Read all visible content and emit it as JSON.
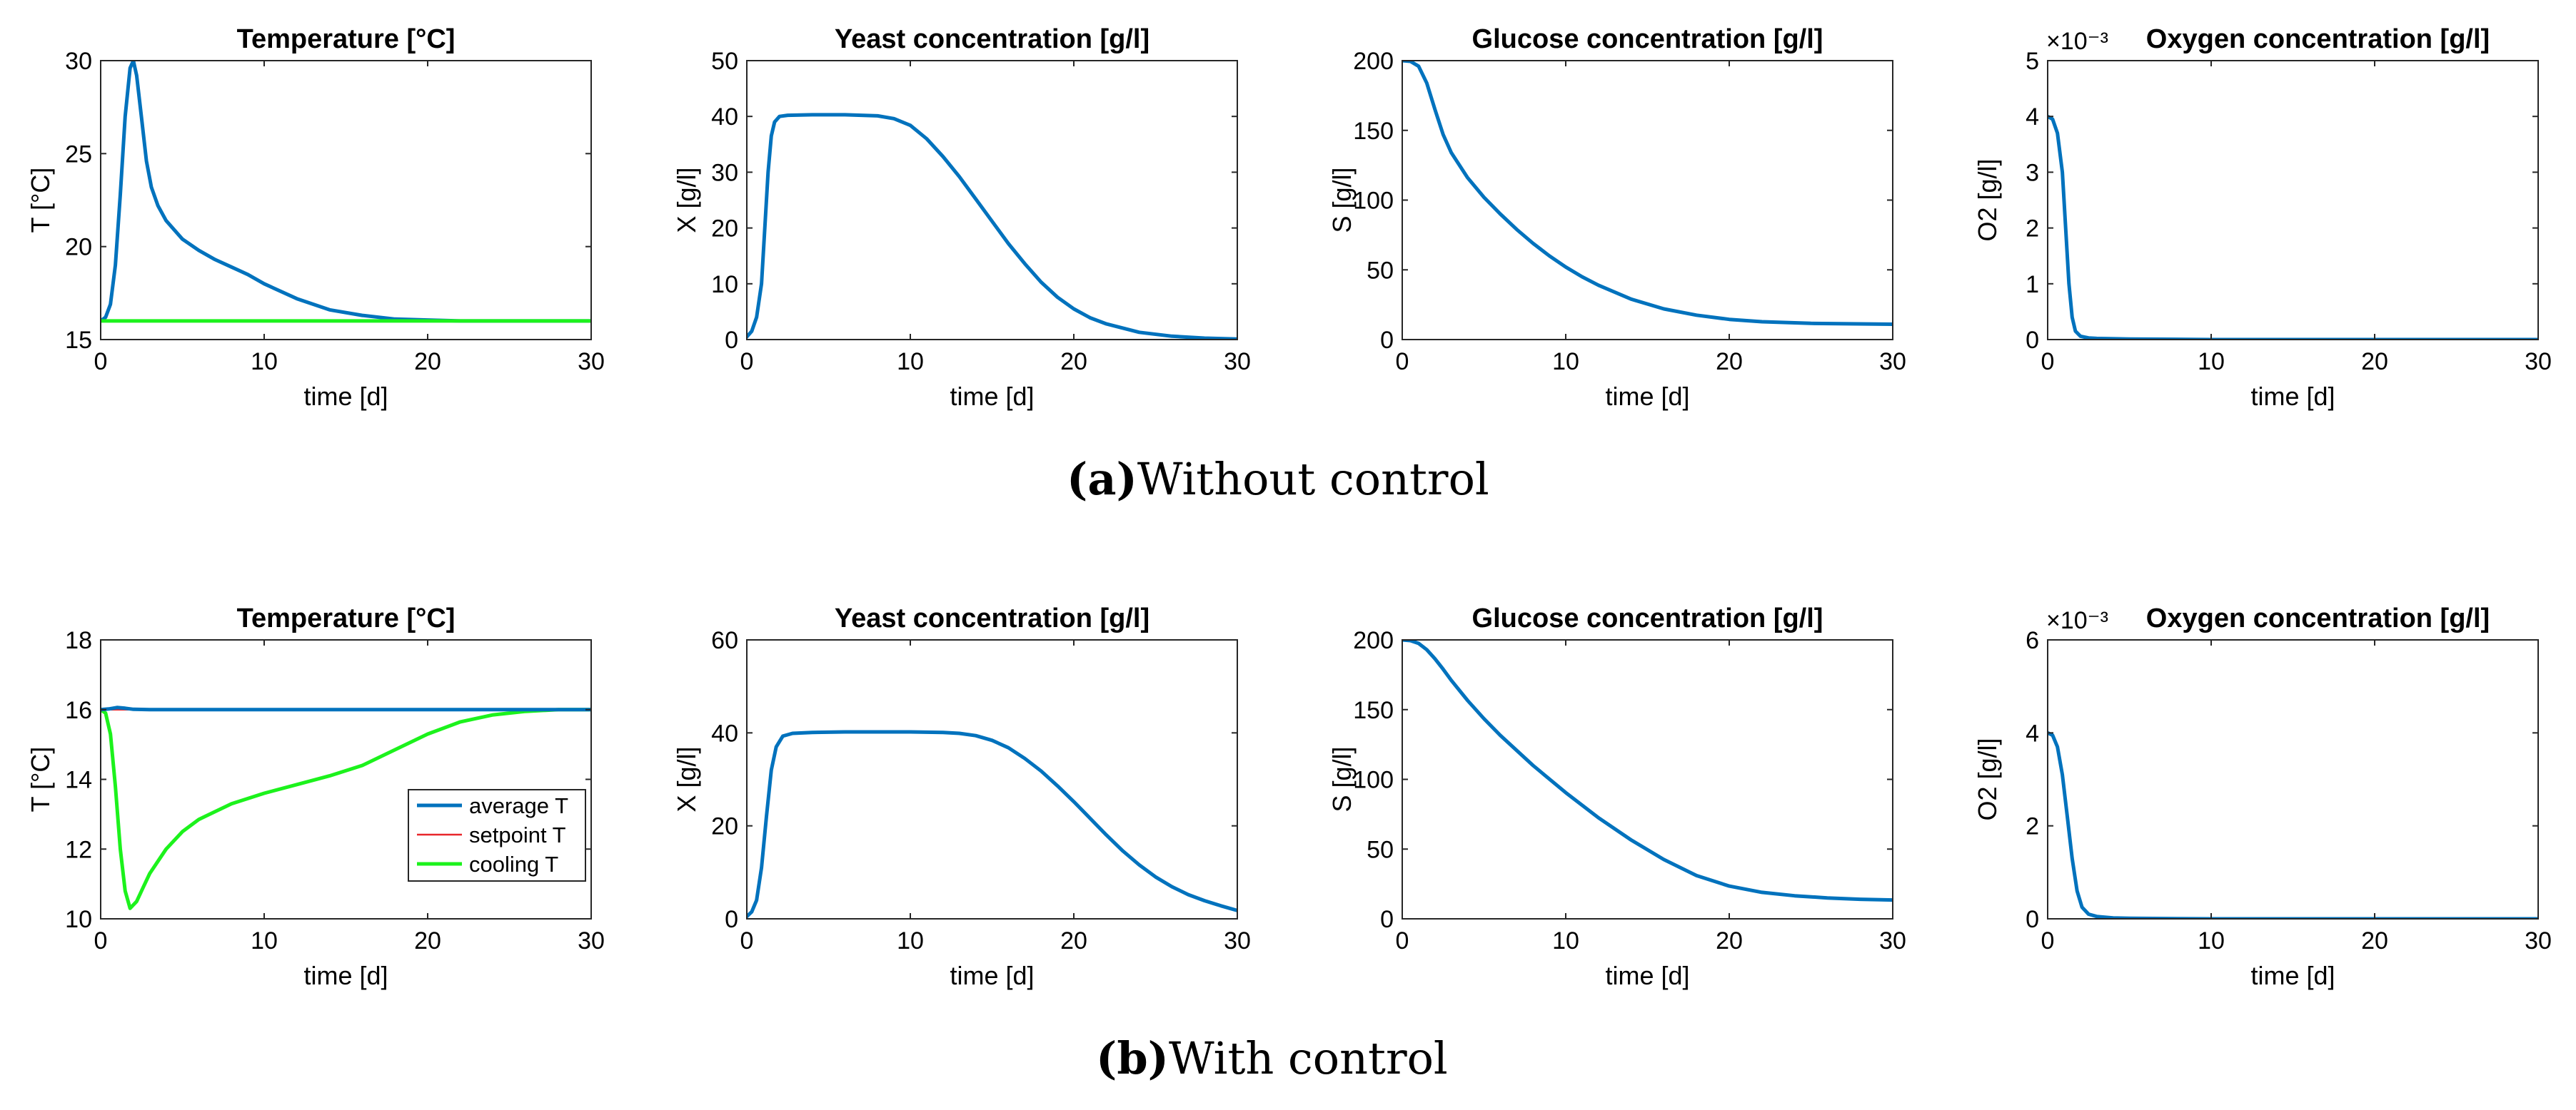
{
  "captions": [
    {
      "letter": "(a)",
      "text": "Without control"
    },
    {
      "letter": "(b)",
      "text": "With control"
    }
  ],
  "colors": {
    "blue": "#0072BD",
    "red": "#E8262B",
    "green": "#1CF21C"
  },
  "chart_data": [
    {
      "type": "line",
      "title": "Temperature [°C]",
      "xlabel": "time [d]",
      "ylabel": "T [°C]",
      "xlim": [
        0,
        30
      ],
      "ylim": [
        15,
        30
      ],
      "xticks": [
        0,
        10,
        20,
        30
      ],
      "yticks": [
        15,
        20,
        25,
        30
      ],
      "series": [
        {
          "name": "average T",
          "color": "#0072BD",
          "width": 5,
          "x": [
            0,
            0.3,
            0.6,
            0.9,
            1.2,
            1.5,
            1.8,
            2.0,
            2.2,
            2.5,
            2.8,
            3.1,
            3.5,
            4,
            5,
            6,
            7,
            8,
            9,
            10,
            12,
            14,
            16,
            18,
            20,
            22,
            25,
            30
          ],
          "y": [
            16,
            16.2,
            16.9,
            19.0,
            22.8,
            27.0,
            29.6,
            30.0,
            29.2,
            26.9,
            24.6,
            23.2,
            22.2,
            21.4,
            20.4,
            19.8,
            19.3,
            18.9,
            18.5,
            18.0,
            17.2,
            16.6,
            16.3,
            16.1,
            16.05,
            16.0,
            16.0,
            16.0
          ]
        },
        {
          "name": "cooling T",
          "color": "#1CF21C",
          "width": 5,
          "x": [
            0,
            30
          ],
          "y": [
            16,
            16
          ]
        }
      ]
    },
    {
      "type": "line",
      "title": "Yeast concentration [g/l]",
      "xlabel": "time [d]",
      "ylabel": "X [g/l]",
      "xlim": [
        0,
        30
      ],
      "ylim": [
        0,
        50
      ],
      "xticks": [
        0,
        10,
        20,
        30
      ],
      "yticks": [
        0,
        10,
        20,
        30,
        40,
        50
      ],
      "series": [
        {
          "name": "X",
          "color": "#0072BD",
          "width": 5,
          "x": [
            0,
            0.3,
            0.6,
            0.9,
            1.1,
            1.3,
            1.5,
            1.7,
            2.0,
            2.5,
            4,
            6,
            8,
            9,
            10,
            11,
            12,
            13,
            14,
            15,
            16,
            17,
            18,
            19,
            20,
            21,
            22,
            24,
            26,
            28,
            30
          ],
          "y": [
            0.5,
            1.5,
            4,
            10,
            20,
            30,
            36.5,
            39,
            40,
            40.2,
            40.3,
            40.3,
            40.1,
            39.6,
            38.4,
            36.0,
            32.8,
            29.2,
            25.2,
            21.2,
            17.2,
            13.6,
            10.3,
            7.6,
            5.5,
            3.9,
            2.8,
            1.3,
            0.6,
            0.25,
            0.1
          ]
        }
      ]
    },
    {
      "type": "line",
      "title": "Glucose concentration [g/l]",
      "xlabel": "time [d]",
      "ylabel": "S [g/l]",
      "xlim": [
        0,
        30
      ],
      "ylim": [
        0,
        200
      ],
      "xticks": [
        0,
        10,
        20,
        30
      ],
      "yticks": [
        0,
        50,
        100,
        150,
        200
      ],
      "series": [
        {
          "name": "S",
          "color": "#0072BD",
          "width": 5,
          "x": [
            0,
            0.5,
            1.0,
            1.5,
            2.0,
            2.5,
            3,
            4,
            5,
            6,
            7,
            8,
            9,
            10,
            11,
            12,
            14,
            16,
            18,
            20,
            22,
            25,
            30
          ],
          "y": [
            200,
            199.5,
            196,
            184,
            165,
            147,
            134,
            116,
            102,
            90,
            79,
            69,
            60,
            52,
            45,
            39,
            29,
            22,
            17.5,
            14.5,
            12.8,
            11.6,
            11
          ]
        }
      ]
    },
    {
      "type": "line",
      "title": "Oxygen concentration [g/l]",
      "exponent": "×10⁻³",
      "xlabel": "time [d]",
      "ylabel": "O2 [g/l]",
      "xlim": [
        0,
        30
      ],
      "ylim": [
        0,
        5
      ],
      "xticks": [
        0,
        10,
        20,
        30
      ],
      "yticks": [
        0,
        1,
        2,
        3,
        4,
        5
      ],
      "series": [
        {
          "name": "O2",
          "color": "#0072BD",
          "width": 5,
          "x": [
            0,
            0.3,
            0.6,
            0.9,
            1.1,
            1.3,
            1.5,
            1.7,
            2.0,
            2.5,
            3,
            5,
            10,
            20,
            30
          ],
          "y": [
            4.0,
            3.95,
            3.7,
            3.0,
            2.0,
            1.0,
            0.4,
            0.15,
            0.06,
            0.03,
            0.02,
            0.01,
            0.0,
            0.0,
            0.0
          ]
        }
      ]
    },
    {
      "type": "line",
      "title": "Temperature [°C]",
      "xlabel": "time [d]",
      "ylabel": "T [°C]",
      "xlim": [
        0,
        30
      ],
      "ylim": [
        10,
        18
      ],
      "xticks": [
        0,
        10,
        20,
        30
      ],
      "yticks": [
        10,
        12,
        14,
        16,
        18
      ],
      "legend": {
        "position": "lower-right",
        "entries": [
          "average T",
          "setpoint T",
          "cooling T"
        ]
      },
      "series": [
        {
          "name": "cooling T",
          "color": "#1CF21C",
          "width": 5,
          "x": [
            0,
            0.3,
            0.6,
            0.9,
            1.2,
            1.5,
            1.8,
            2.2,
            2.6,
            3,
            4,
            5,
            6,
            8,
            10,
            12,
            14,
            16,
            18,
            20,
            22,
            24,
            26,
            28,
            30
          ],
          "y": [
            16,
            15.9,
            15.3,
            13.8,
            12.0,
            10.8,
            10.3,
            10.5,
            10.9,
            11.3,
            12.0,
            12.5,
            12.85,
            13.3,
            13.6,
            13.85,
            14.1,
            14.4,
            14.85,
            15.3,
            15.65,
            15.85,
            15.95,
            16.0,
            16.0
          ]
        },
        {
          "name": "setpoint T",
          "color": "#E8262B",
          "width": 2.5,
          "x": [
            0,
            30
          ],
          "y": [
            16,
            16
          ]
        },
        {
          "name": "average T",
          "color": "#0072BD",
          "width": 5,
          "x": [
            0,
            0.5,
            1.0,
            1.5,
            2.0,
            3,
            5,
            10,
            20,
            30
          ],
          "y": [
            16,
            16.02,
            16.06,
            16.04,
            16.01,
            16.0,
            16.0,
            16.0,
            16.0,
            16.0
          ]
        }
      ]
    },
    {
      "type": "line",
      "title": "Yeast concentration [g/l]",
      "xlabel": "time [d]",
      "ylabel": "X [g/l]",
      "xlim": [
        0,
        30
      ],
      "ylim": [
        0,
        60
      ],
      "xticks": [
        0,
        10,
        20,
        30
      ],
      "yticks": [
        0,
        20,
        40,
        60
      ],
      "series": [
        {
          "name": "X",
          "color": "#0072BD",
          "width": 5,
          "x": [
            0,
            0.3,
            0.6,
            0.9,
            1.2,
            1.5,
            1.8,
            2.2,
            2.8,
            4,
            6,
            8,
            10,
            12,
            13,
            14,
            15,
            16,
            17,
            18,
            19,
            20,
            21,
            22,
            23,
            24,
            25,
            26,
            27,
            28,
            29,
            30
          ],
          "y": [
            0.5,
            1.5,
            4,
            11,
            22,
            32,
            37,
            39.3,
            39.9,
            40.1,
            40.2,
            40.2,
            40.2,
            40.1,
            39.9,
            39.4,
            38.4,
            36.8,
            34.5,
            31.8,
            28.6,
            25.2,
            21.6,
            18.0,
            14.6,
            11.6,
            9.0,
            6.9,
            5.2,
            3.9,
            2.8,
            1.8
          ]
        }
      ]
    },
    {
      "type": "line",
      "title": "Glucose concentration [g/l]",
      "xlabel": "time [d]",
      "ylabel": "S [g/l]",
      "xlim": [
        0,
        30
      ],
      "ylim": [
        0,
        200
      ],
      "xticks": [
        0,
        10,
        20,
        30
      ],
      "yticks": [
        0,
        50,
        100,
        150,
        200
      ],
      "series": [
        {
          "name": "S",
          "color": "#0072BD",
          "width": 5,
          "x": [
            0,
            0.5,
            1.0,
            1.5,
            2.0,
            2.5,
            3,
            4,
            5,
            6,
            8,
            10,
            12,
            14,
            16,
            18,
            20,
            22,
            24,
            26,
            28,
            30
          ],
          "y": [
            200,
            199.5,
            197.5,
            193,
            186.5,
            179,
            171,
            156.5,
            143.5,
            131.5,
            110,
            90.5,
            72.5,
            56.5,
            42.5,
            31,
            23.5,
            19,
            16.5,
            15,
            14,
            13.5
          ]
        }
      ]
    },
    {
      "type": "line",
      "title": "Oxygen concentration [g/l]",
      "exponent": "×10⁻³",
      "xlabel": "time [d]",
      "ylabel": "O2 [g/l]",
      "xlim": [
        0,
        30
      ],
      "ylim": [
        0,
        6
      ],
      "xticks": [
        0,
        10,
        20,
        30
      ],
      "yticks": [
        0,
        2,
        4,
        6
      ],
      "series": [
        {
          "name": "O2",
          "color": "#0072BD",
          "width": 5,
          "x": [
            0,
            0.3,
            0.6,
            0.9,
            1.2,
            1.5,
            1.8,
            2.1,
            2.5,
            3,
            4,
            5,
            10,
            20,
            30
          ],
          "y": [
            4.0,
            3.95,
            3.7,
            3.1,
            2.2,
            1.3,
            0.6,
            0.25,
            0.1,
            0.05,
            0.02,
            0.01,
            0.0,
            0.0,
            0.0
          ]
        }
      ]
    }
  ]
}
